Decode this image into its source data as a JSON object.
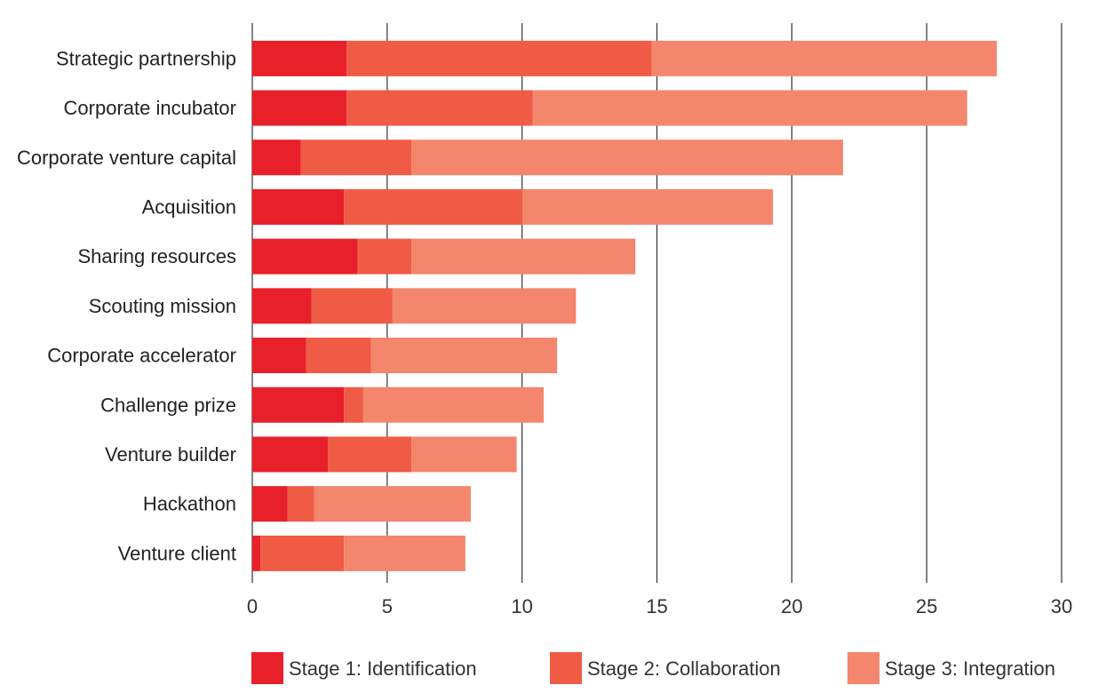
{
  "chart_data": {
    "type": "bar",
    "orientation": "horizontal",
    "stacked": true,
    "categories": [
      "Strategic partnership",
      "Corporate incubator",
      "Corporate venture capital",
      "Acquisition",
      "Sharing resources",
      "Scouting mission",
      "Corporate accelerator",
      "Challenge prize",
      "Venture builder",
      "Hackathon",
      "Venture client"
    ],
    "series": [
      {
        "name": "Stage 1: Identification",
        "color": "#E8202A",
        "values": [
          3.5,
          3.5,
          1.8,
          3.4,
          3.9,
          2.2,
          2.0,
          3.4,
          2.8,
          1.3,
          0.3
        ]
      },
      {
        "name": "Stage 2: Collaboration",
        "color": "#EF5B45",
        "values": [
          11.3,
          6.9,
          4.1,
          6.6,
          2.0,
          3.0,
          2.4,
          0.7,
          3.1,
          1.0,
          3.1
        ]
      },
      {
        "name": "Stage 3: Integration",
        "color": "#F3866C",
        "values": [
          12.8,
          16.1,
          16.0,
          9.3,
          8.3,
          6.8,
          6.9,
          6.7,
          3.9,
          5.8,
          4.5
        ]
      }
    ],
    "xlim": [
      0,
      30
    ],
    "xticks": [
      "0",
      "5",
      "10",
      "15",
      "20",
      "25",
      "30"
    ],
    "grid": "vertical",
    "legend_position": "bottom",
    "title": "",
    "xlabel": "",
    "ylabel": ""
  }
}
